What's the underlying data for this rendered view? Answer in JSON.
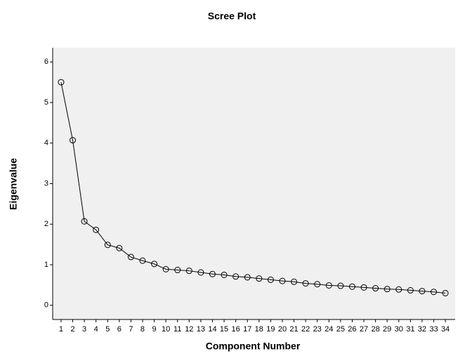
{
  "chart_data": {
    "type": "line",
    "title": "Scree Plot",
    "x_label": "Component Number",
    "y_label": "Eigenvalue",
    "x": [
      1,
      2,
      3,
      4,
      5,
      6,
      7,
      8,
      9,
      10,
      11,
      12,
      13,
      14,
      15,
      16,
      17,
      18,
      19,
      20,
      21,
      22,
      23,
      24,
      25,
      26,
      27,
      28,
      29,
      30,
      31,
      32,
      33,
      34
    ],
    "values": [
      5.5,
      4.07,
      2.07,
      1.86,
      1.49,
      1.41,
      1.19,
      1.1,
      1.02,
      0.89,
      0.87,
      0.85,
      0.81,
      0.77,
      0.75,
      0.71,
      0.69,
      0.66,
      0.63,
      0.6,
      0.58,
      0.54,
      0.52,
      0.49,
      0.48,
      0.46,
      0.44,
      0.42,
      0.4,
      0.39,
      0.37,
      0.35,
      0.33,
      0.3
    ],
    "color": "#000000",
    "marker": "open-circle",
    "xlim": [
      0.28,
      34.84
    ],
    "ylim": [
      -0.35,
      6.35
    ],
    "xticks": [
      1,
      2,
      3,
      4,
      5,
      6,
      7,
      8,
      9,
      10,
      11,
      12,
      13,
      14,
      15,
      16,
      17,
      18,
      19,
      20,
      21,
      22,
      23,
      24,
      25,
      26,
      27,
      28,
      29,
      30,
      31,
      32,
      33,
      34
    ],
    "yticks": [
      0,
      1,
      2,
      3,
      4,
      5,
      6
    ]
  }
}
